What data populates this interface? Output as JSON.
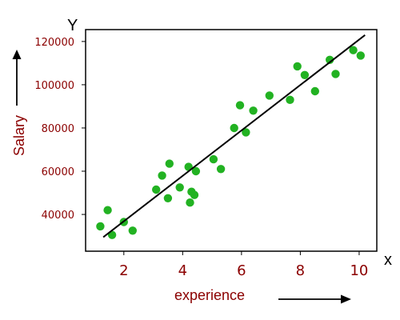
{
  "chart_data": {
    "type": "scatter",
    "title": "",
    "xlabel": "experience",
    "ylabel": "Salary",
    "x_axis_letter": "x",
    "y_axis_letter": "Y",
    "xlim": [
      0.7,
      10.6
    ],
    "ylim": [
      23000,
      125500
    ],
    "x_ticks": [
      2,
      4,
      6,
      8,
      10
    ],
    "y_ticks": [
      40000,
      60000,
      80000,
      100000,
      120000
    ],
    "grid": false,
    "legend": "none",
    "series": [
      {
        "points": [
          {
            "x": 1.2,
            "y": 34500
          },
          {
            "x": 1.45,
            "y": 42000
          },
          {
            "x": 1.6,
            "y": 30500
          },
          {
            "x": 2.0,
            "y": 36500
          },
          {
            "x": 2.3,
            "y": 32500
          },
          {
            "x": 3.1,
            "y": 51500
          },
          {
            "x": 3.3,
            "y": 58000
          },
          {
            "x": 3.5,
            "y": 47500
          },
          {
            "x": 3.55,
            "y": 63500
          },
          {
            "x": 3.9,
            "y": 52500
          },
          {
            "x": 4.2,
            "y": 62000
          },
          {
            "x": 4.25,
            "y": 45500
          },
          {
            "x": 4.3,
            "y": 50500
          },
          {
            "x": 4.4,
            "y": 49000
          },
          {
            "x": 4.45,
            "y": 60000
          },
          {
            "x": 5.05,
            "y": 65500
          },
          {
            "x": 5.3,
            "y": 61000
          },
          {
            "x": 5.75,
            "y": 80000
          },
          {
            "x": 5.95,
            "y": 90500
          },
          {
            "x": 6.15,
            "y": 78000
          },
          {
            "x": 6.4,
            "y": 88000
          },
          {
            "x": 6.95,
            "y": 95000
          },
          {
            "x": 7.65,
            "y": 93000
          },
          {
            "x": 7.9,
            "y": 108500
          },
          {
            "x": 8.15,
            "y": 104500
          },
          {
            "x": 8.5,
            "y": 97000
          },
          {
            "x": 9.0,
            "y": 111500
          },
          {
            "x": 9.2,
            "y": 105000
          },
          {
            "x": 9.8,
            "y": 116000
          },
          {
            "x": 10.05,
            "y": 113500
          }
        ]
      }
    ],
    "trend_line": {
      "from": {
        "x": 1.3,
        "y": 29500
      },
      "to": {
        "x": 10.2,
        "y": 123000
      }
    },
    "colors": {
      "points": "#22b222",
      "line": "#000000",
      "tick_labels": "#8b0000",
      "axis_titles": "#8b0000",
      "axis_letters": "#000000",
      "frame": "#000000"
    }
  }
}
